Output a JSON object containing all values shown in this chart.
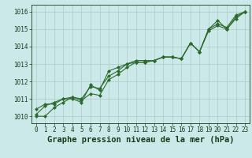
{
  "title": "Graphe pression niveau de la mer (hPa)",
  "background_color": "#cce9e9",
  "grid_color": "#b0c8c8",
  "line_color": "#2d6a2d",
  "text_color": "#1a3a1a",
  "x_values": [
    0,
    1,
    2,
    3,
    4,
    5,
    6,
    7,
    8,
    9,
    10,
    11,
    12,
    13,
    14,
    15,
    16,
    17,
    18,
    19,
    20,
    21,
    22,
    23
  ],
  "series": [
    [
      1010.4,
      1010.7,
      1010.7,
      1011.0,
      1011.0,
      1010.8,
      1011.8,
      1011.5,
      1012.6,
      1012.8,
      1013.0,
      1013.1,
      1013.1,
      1013.2,
      1013.4,
      1013.4,
      1013.3,
      1014.2,
      1013.7,
      1015.0,
      1015.5,
      1015.0,
      1015.7,
      1016.0
    ],
    [
      1010.1,
      1010.6,
      1010.8,
      1011.0,
      1011.1,
      1010.9,
      1011.3,
      1011.2,
      1012.1,
      1012.4,
      1012.8,
      1013.1,
      1013.1,
      1013.2,
      1013.4,
      1013.4,
      1013.3,
      1014.2,
      1013.7,
      1014.9,
      1015.2,
      1015.0,
      1015.6,
      1016.0
    ],
    [
      1010.0,
      1010.0,
      1010.5,
      1010.8,
      1011.1,
      1011.0,
      1011.7,
      1011.6,
      1012.3,
      1012.6,
      1013.0,
      1013.2,
      1013.2,
      1013.2,
      1013.4,
      1013.4,
      1013.3,
      1014.2,
      1013.7,
      1015.0,
      1015.3,
      1015.1,
      1015.8,
      1016.0
    ]
  ],
  "ylim": [
    1009.6,
    1016.4
  ],
  "yticks": [
    1010,
    1011,
    1012,
    1013,
    1014,
    1015,
    1016
  ],
  "xticks": [
    0,
    1,
    2,
    3,
    4,
    5,
    6,
    7,
    8,
    9,
    10,
    11,
    12,
    13,
    14,
    15,
    16,
    17,
    18,
    19,
    20,
    21,
    22,
    23
  ],
  "marker": "D",
  "markersize": 2.0,
  "linewidth": 0.8,
  "title_fontsize": 7.5,
  "tick_fontsize": 5.5
}
